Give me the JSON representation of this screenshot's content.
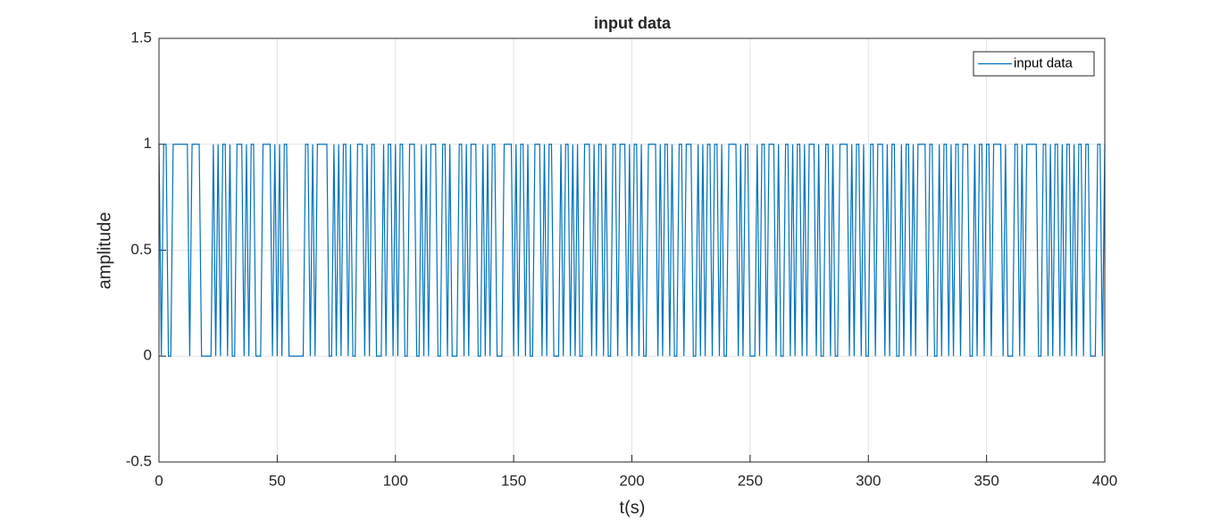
{
  "chart_data": {
    "type": "line",
    "title": "input data",
    "xlabel": "t(s)",
    "ylabel": "amplitude",
    "x": [
      0,
      1,
      2,
      3,
      4,
      5,
      6,
      7,
      8,
      9,
      10,
      11,
      12,
      13,
      14,
      15,
      16,
      17,
      18,
      19,
      20,
      21,
      22,
      23,
      24,
      25,
      26,
      27,
      28,
      29,
      30,
      31,
      32,
      33,
      34,
      35,
      36,
      37,
      38,
      39,
      40,
      41,
      42,
      43,
      44,
      45,
      46,
      47,
      48,
      49,
      50,
      51,
      52,
      53,
      54,
      55,
      56,
      57,
      58,
      59,
      60,
      61,
      62,
      63,
      64,
      65,
      66,
      67,
      68,
      69,
      70,
      71,
      72,
      73,
      74,
      75,
      76,
      77,
      78,
      79,
      80,
      81,
      82,
      83,
      84,
      85,
      86,
      87,
      88,
      89,
      90,
      91,
      92,
      93,
      94,
      95,
      96,
      97,
      98,
      99,
      100,
      101,
      102,
      103,
      104,
      105,
      106,
      107,
      108,
      109,
      110,
      111,
      112,
      113,
      114,
      115,
      116,
      117,
      118,
      119,
      120,
      121,
      122,
      123,
      124,
      125,
      126,
      127,
      128,
      129,
      130,
      131,
      132,
      133,
      134,
      135,
      136,
      137,
      138,
      139,
      140,
      141,
      142,
      143,
      144,
      145,
      146,
      147,
      148,
      149,
      150,
      151,
      152,
      153,
      154,
      155,
      156,
      157,
      158,
      159,
      160,
      161,
      162,
      163,
      164,
      165,
      166,
      167,
      168,
      169,
      170,
      171,
      172,
      173,
      174,
      175,
      176,
      177,
      178,
      179,
      180,
      181,
      182,
      183,
      184,
      185,
      186,
      187,
      188,
      189,
      190,
      191,
      192,
      193,
      194,
      195,
      196,
      197,
      198,
      199,
      200,
      201,
      202,
      203,
      204,
      205,
      206,
      207,
      208,
      209,
      210,
      211,
      212,
      213,
      214,
      215,
      216,
      217,
      218,
      219,
      220,
      221,
      222,
      223,
      224,
      225,
      226,
      227,
      228,
      229,
      230,
      231,
      232,
      233,
      234,
      235,
      236,
      237,
      238,
      239,
      240,
      241,
      242,
      243,
      244,
      245,
      246,
      247,
      248,
      249,
      250,
      251,
      252,
      253,
      254,
      255,
      256,
      257,
      258,
      259,
      260,
      261,
      262,
      263,
      264,
      265,
      266,
      267,
      268,
      269,
      270,
      271,
      272,
      273,
      274,
      275,
      276,
      277,
      278,
      279,
      280,
      281,
      282,
      283,
      284,
      285,
      286,
      287,
      288,
      289,
      290,
      291,
      292,
      293,
      294,
      295,
      296,
      297,
      298,
      299,
      300,
      301,
      302,
      303,
      304,
      305,
      306,
      307,
      308,
      309,
      310,
      311,
      312,
      313,
      314,
      315,
      316,
      317,
      318,
      319,
      320,
      321,
      322,
      323,
      324,
      325,
      326,
      327,
      328,
      329,
      330,
      331,
      332,
      333,
      334,
      335,
      336,
      337,
      338,
      339,
      340,
      341,
      342,
      343,
      344,
      345,
      346,
      347,
      348,
      349,
      350,
      351,
      352,
      353,
      354,
      355,
      356,
      357,
      358,
      359,
      360,
      361,
      362,
      363,
      364,
      365,
      366,
      367,
      368,
      369,
      370,
      371,
      372,
      373,
      374,
      375,
      376,
      377,
      378,
      379,
      380,
      381,
      382,
      383,
      384,
      385,
      386,
      387,
      388,
      389,
      390,
      391,
      392,
      393,
      394,
      395,
      396,
      397,
      398,
      399,
      400
    ],
    "series": [
      {
        "name": "input data",
        "color": "#0072BD",
        "values": [
          1,
          0,
          1,
          1,
          0,
          0,
          1,
          1,
          1,
          1,
          1,
          1,
          1,
          0,
          1,
          1,
          1,
          1,
          0,
          0,
          0,
          0,
          0,
          1,
          0,
          1,
          0,
          1,
          1,
          0,
          1,
          0,
          0,
          1,
          1,
          1,
          0,
          1,
          0,
          1,
          1,
          0,
          0,
          0,
          1,
          1,
          1,
          1,
          0,
          1,
          0,
          1,
          0,
          1,
          1,
          0,
          0,
          0,
          0,
          0,
          0,
          0,
          1,
          1,
          0,
          1,
          0,
          1,
          1,
          1,
          1,
          1,
          0,
          0,
          1,
          0,
          1,
          0,
          1,
          1,
          0,
          1,
          0,
          0,
          1,
          1,
          1,
          0,
          1,
          0,
          1,
          1,
          0,
          0,
          0,
          1,
          0,
          1,
          1,
          0,
          1,
          0,
          1,
          1,
          0,
          0,
          1,
          1,
          1,
          0,
          0,
          1,
          0,
          1,
          0,
          1,
          1,
          1,
          0,
          0,
          1,
          1,
          0,
          1,
          0,
          0,
          0,
          1,
          1,
          0,
          1,
          0,
          1,
          1,
          1,
          0,
          0,
          1,
          0,
          1,
          0,
          1,
          1,
          0,
          0,
          0,
          1,
          1,
          1,
          1,
          0,
          1,
          0,
          1,
          1,
          0,
          1,
          0,
          0,
          1,
          1,
          1,
          0,
          1,
          0,
          1,
          1,
          0,
          0,
          0,
          1,
          0,
          1,
          1,
          0,
          1,
          0,
          1,
          0,
          0,
          1,
          1,
          1,
          0,
          1,
          0,
          1,
          1,
          0,
          1,
          0,
          0,
          1,
          1,
          0,
          1,
          1,
          1,
          0,
          1,
          0,
          1,
          1,
          0,
          1,
          0,
          0,
          1,
          1,
          1,
          1,
          0,
          1,
          0,
          1,
          1,
          0,
          1,
          0,
          0,
          1,
          1,
          0,
          1,
          1,
          1,
          0,
          0,
          1,
          0,
          1,
          0,
          1,
          1,
          0,
          1,
          1,
          0,
          1,
          0,
          0,
          1,
          1,
          1,
          1,
          0,
          1,
          0,
          1,
          1,
          0,
          0,
          0,
          1,
          0,
          1,
          1,
          0,
          1,
          1,
          1,
          0,
          1,
          0,
          0,
          1,
          1,
          0,
          1,
          0,
          1,
          1,
          0,
          1,
          0,
          1,
          1,
          1,
          0,
          1,
          0,
          0,
          1,
          1,
          0,
          1,
          0,
          0,
          1,
          1,
          1,
          1,
          0,
          1,
          0,
          1,
          1,
          0,
          1,
          0,
          0,
          1,
          1,
          0,
          1,
          1,
          1,
          0,
          1,
          0,
          1,
          1,
          0,
          0,
          1,
          0,
          1,
          1,
          0,
          1,
          0,
          1,
          1,
          1,
          1,
          0,
          1,
          1,
          0,
          0,
          1,
          0,
          1,
          1,
          0,
          1,
          0,
          1,
          1,
          0,
          1,
          1,
          1,
          0,
          0,
          1,
          0,
          1,
          1,
          0,
          1,
          1,
          0,
          1,
          1,
          1,
          1,
          0,
          1,
          0,
          0,
          0,
          1,
          1,
          0,
          1,
          0,
          1,
          1,
          1,
          1,
          1,
          0,
          0,
          1,
          1,
          0,
          1,
          0,
          1,
          1,
          0,
          1,
          0,
          1,
          1,
          0,
          1,
          0,
          1,
          1,
          0,
          1,
          1,
          0,
          0,
          0,
          1,
          1,
          0,
          1
        ]
      }
    ],
    "xlim": [
      0,
      400
    ],
    "ylim": [
      -0.5,
      1.5
    ],
    "xticks": [
      0,
      50,
      100,
      150,
      200,
      250,
      300,
      350,
      400
    ],
    "yticks": [
      -0.5,
      0,
      0.5,
      1,
      1.5
    ],
    "grid": true,
    "legend": "upper right"
  }
}
